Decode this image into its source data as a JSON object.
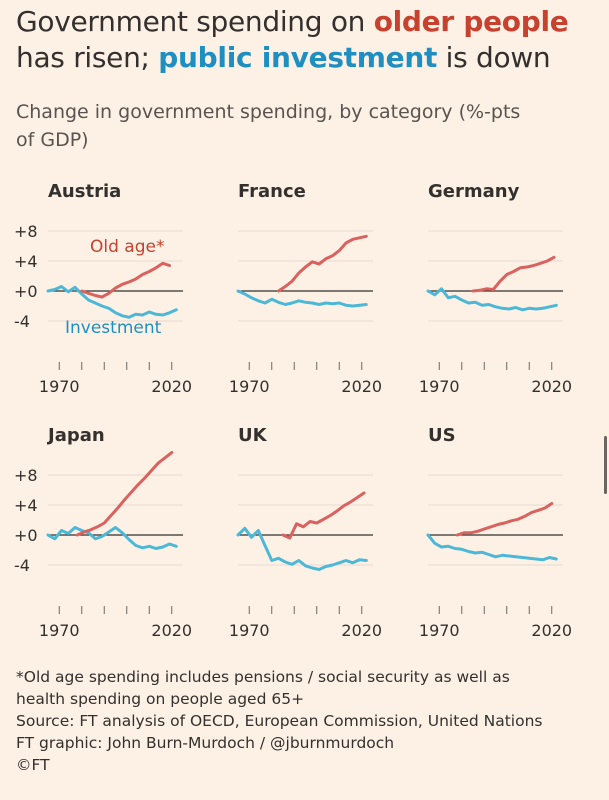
{
  "header": {
    "title_part1": "Government spending on ",
    "title_old": "older people",
    "title_part2": "has risen; ",
    "title_inv": "public investment",
    "title_part3": " is down",
    "subtitle_line1": "Change in government spending, by category (%-pts",
    "subtitle_line2": "of GDP)"
  },
  "colors": {
    "old_age": "#d9625f",
    "investment": "#4cb8d8",
    "old_age_label": "#c8412e",
    "investment_label": "#1f8fc1",
    "axis": "#33302e",
    "grid": "#e6dbd1"
  },
  "chart_data": {
    "type": "line",
    "ylim": [
      -6,
      10
    ],
    "xlim": [
      1965,
      2025
    ],
    "yticks": [
      8,
      4,
      0,
      -4
    ],
    "ytick_labels": [
      "+8",
      "+4",
      "+0",
      "-4"
    ],
    "xtick_labels": [
      "1970",
      "2020"
    ],
    "series_labels": {
      "old_age": "Old age*",
      "investment": "Investment"
    },
    "panels": [
      {
        "name": "Austria",
        "old_age": {
          "x": [
            1980,
            1983,
            1986,
            1989,
            1992,
            1995,
            1998,
            2001,
            2004,
            2007,
            2010,
            2013,
            2016,
            2019
          ],
          "y": [
            0,
            -0.3,
            -0.6,
            -0.8,
            -0.3,
            0.4,
            0.9,
            1.2,
            1.6,
            2.2,
            2.6,
            3.1,
            3.7,
            3.4
          ]
        },
        "investment": {
          "x": [
            1965,
            1968,
            1971,
            1974,
            1977,
            1980,
            1983,
            1986,
            1989,
            1992,
            1995,
            1998,
            2001,
            2004,
            2007,
            2010,
            2013,
            2016,
            2019,
            2022
          ],
          "y": [
            0,
            0.2,
            0.6,
            -0.1,
            0.5,
            -0.4,
            -1.2,
            -1.6,
            -2.0,
            -2.3,
            -2.9,
            -3.3,
            -3.5,
            -3.1,
            -3.2,
            -2.8,
            -3.1,
            -3.2,
            -2.9,
            -2.5
          ]
        }
      },
      {
        "name": "France",
        "old_age": {
          "x": [
            1983,
            1986,
            1989,
            1992,
            1995,
            1998,
            2001,
            2004,
            2007,
            2010,
            2013,
            2016,
            2019,
            2022
          ],
          "y": [
            0,
            0.6,
            1.3,
            2.4,
            3.2,
            3.9,
            3.6,
            4.3,
            4.7,
            5.4,
            6.4,
            6.9,
            7.1,
            7.3
          ]
        },
        "investment": {
          "x": [
            1965,
            1968,
            1971,
            1974,
            1977,
            1980,
            1983,
            1986,
            1989,
            1992,
            1995,
            1998,
            2001,
            2004,
            2007,
            2010,
            2013,
            2016,
            2019,
            2022
          ],
          "y": [
            0,
            -0.4,
            -0.9,
            -1.3,
            -1.6,
            -1.1,
            -1.5,
            -1.8,
            -1.6,
            -1.3,
            -1.5,
            -1.6,
            -1.8,
            -1.6,
            -1.7,
            -1.6,
            -1.9,
            -2.0,
            -1.9,
            -1.8
          ]
        }
      },
      {
        "name": "Germany",
        "old_age": {
          "x": [
            1985,
            1988,
            1991,
            1994,
            1997,
            2000,
            2003,
            2006,
            2009,
            2012,
            2015,
            2018,
            2021
          ],
          "y": [
            0,
            0.1,
            0.3,
            0.2,
            1.3,
            2.2,
            2.6,
            3.1,
            3.2,
            3.4,
            3.7,
            4.0,
            4.5
          ]
        },
        "investment": {
          "x": [
            1965,
            1968,
            1971,
            1974,
            1977,
            1980,
            1983,
            1986,
            1989,
            1992,
            1995,
            1998,
            2001,
            2004,
            2007,
            2010,
            2013,
            2016,
            2019,
            2022
          ],
          "y": [
            0,
            -0.5,
            0.3,
            -0.9,
            -0.7,
            -1.2,
            -1.6,
            -1.5,
            -1.9,
            -1.8,
            -2.1,
            -2.3,
            -2.4,
            -2.2,
            -2.5,
            -2.3,
            -2.4,
            -2.3,
            -2.1,
            -1.9
          ]
        }
      },
      {
        "name": "Japan",
        "old_age": {
          "x": [
            1978,
            1981,
            1984,
            1987,
            1990,
            1993,
            1996,
            1999,
            2002,
            2005,
            2008,
            2011,
            2014,
            2017,
            2020
          ],
          "y": [
            0,
            0.4,
            0.7,
            1.1,
            1.6,
            2.6,
            3.6,
            4.7,
            5.7,
            6.7,
            7.6,
            8.6,
            9.6,
            10.3,
            11
          ]
        },
        "investment": {
          "x": [
            1965,
            1968,
            1971,
            1974,
            1977,
            1980,
            1983,
            1986,
            1989,
            1992,
            1995,
            1998,
            2001,
            2004,
            2007,
            2010,
            2013,
            2016,
            2019,
            2022
          ],
          "y": [
            0,
            -0.5,
            0.6,
            0.2,
            1.0,
            0.6,
            0.3,
            -0.5,
            -0.2,
            0.4,
            1.0,
            0.3,
            -0.6,
            -1.4,
            -1.7,
            -1.5,
            -1.8,
            -1.6,
            -1.2,
            -1.5
          ]
        }
      },
      {
        "name": "UK",
        "old_age": {
          "x": [
            1985,
            1988,
            1991,
            1994,
            1997,
            2000,
            2003,
            2006,
            2009,
            2012,
            2015,
            2018,
            2021
          ],
          "y": [
            0,
            -0.4,
            1.5,
            1.1,
            1.8,
            1.6,
            2.1,
            2.6,
            3.2,
            3.9,
            4.4,
            5.0,
            5.6
          ]
        },
        "investment": {
          "x": [
            1965,
            1968,
            1971,
            1974,
            1977,
            1980,
            1983,
            1986,
            1989,
            1992,
            1995,
            1998,
            2001,
            2004,
            2007,
            2010,
            2013,
            2016,
            2019,
            2022
          ],
          "y": [
            0,
            0.9,
            -0.3,
            0.6,
            -1.4,
            -3.4,
            -3.1,
            -3.6,
            -3.9,
            -3.4,
            -4.1,
            -4.4,
            -4.6,
            -4.2,
            -4.0,
            -3.7,
            -3.4,
            -3.7,
            -3.3,
            -3.4
          ]
        }
      },
      {
        "name": "US",
        "old_age": {
          "x": [
            1978,
            1981,
            1984,
            1987,
            1990,
            1993,
            1996,
            1999,
            2002,
            2005,
            2008,
            2011,
            2014,
            2017,
            2020
          ],
          "y": [
            0,
            0.3,
            0.3,
            0.5,
            0.8,
            1.1,
            1.4,
            1.6,
            1.9,
            2.1,
            2.5,
            3.0,
            3.3,
            3.6,
            4.2
          ]
        },
        "investment": {
          "x": [
            1965,
            1968,
            1971,
            1974,
            1977,
            1980,
            1983,
            1986,
            1989,
            1992,
            1995,
            1998,
            2001,
            2004,
            2007,
            2010,
            2013,
            2016,
            2019,
            2022
          ],
          "y": [
            0,
            -1.1,
            -1.6,
            -1.5,
            -1.8,
            -1.9,
            -2.2,
            -2.4,
            -2.3,
            -2.6,
            -2.9,
            -2.7,
            -2.8,
            -2.9,
            -3.0,
            -3.1,
            -3.2,
            -3.3,
            -3.0,
            -3.2
          ]
        }
      }
    ]
  },
  "footnotes": {
    "note_line1": "*Old age spending includes pensions / social security as well as",
    "note_line2": "health spending on people aged 65+",
    "source": "Source: FT analysis of OECD, European Commission, United Nations",
    "credit": "FT graphic: John Burn-Murdoch / @jburnmurdoch",
    "copyright": "©FT"
  }
}
